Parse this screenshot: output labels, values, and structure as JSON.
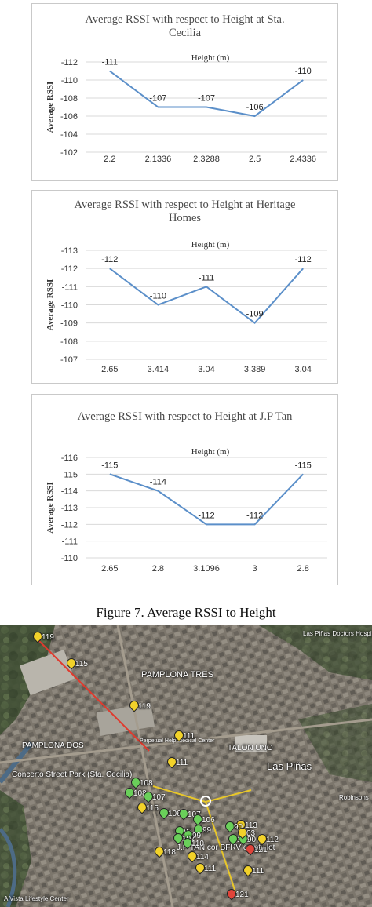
{
  "chart_data": [
    {
      "type": "line",
      "title": "Average RSSI with respect to Height at Sta. Cecilia",
      "title_lines": [
        "Average RSSI with respect to Height at Sta.",
        "Cecilia"
      ],
      "xlabel": "Height (m)",
      "ylabel": "Average RSSI",
      "categories": [
        "2.2",
        "2.1336",
        "2.3288",
        "2.5",
        "2.4336"
      ],
      "values": [
        -111,
        -107,
        -107,
        -106,
        -110
      ],
      "yticks": [
        "-112",
        "-110",
        "-108",
        "-106",
        "-104",
        "-102"
      ],
      "ylim": [
        -112,
        -102
      ],
      "y_reversed": true,
      "grid": true,
      "line_color": "#5b8fc9"
    },
    {
      "type": "line",
      "title": "Average RSSI with respect to Height at Heritage Homes",
      "title_lines": [
        "Average RSSI with respect to Height at Heritage",
        "Homes"
      ],
      "xlabel": "Height (m)",
      "ylabel": "Average RSSI",
      "categories": [
        "2.65",
        "3.414",
        "3.04",
        "3.389",
        "3.04"
      ],
      "values": [
        -112,
        -110,
        -111,
        -109,
        -112
      ],
      "yticks": [
        "-113",
        "-112",
        "-111",
        "-110",
        "-109",
        "-108",
        "-107"
      ],
      "ylim": [
        -113,
        -107
      ],
      "y_reversed": true,
      "grid": true,
      "line_color": "#5b8fc9"
    },
    {
      "type": "line",
      "title": "Average RSSI with respect to Height at J.P Tan",
      "title_lines": [
        "Average RSSI with respect to Height at J.P Tan"
      ],
      "xlabel": "Height (m)",
      "ylabel": "Average RSSI",
      "categories": [
        "2.65",
        "2.8",
        "3.1096",
        "3",
        "2.8"
      ],
      "values": [
        -115,
        -114,
        -112,
        -112,
        -115
      ],
      "yticks": [
        "-116",
        "-115",
        "-114",
        "-113",
        "-112",
        "-111",
        "-110"
      ],
      "ylim": [
        -116,
        -110
      ],
      "y_reversed": true,
      "grid": true,
      "line_color": "#5b8fc9"
    }
  ],
  "caption": "Figure 7. Average RSSI to Height",
  "map": {
    "place_labels": [
      "PAMPLONA TRES",
      "PAMPLONA DOS",
      "TALON UNO",
      "Las Piñas",
      "Concerto Street Park (Sta. Cecilia)",
      "J.P TAN cor BFRV empty lot",
      "Perpetual Help Medical Center",
      "Robinsons",
      "Las Piñas Doctors Hospital",
      "A Vista Lifestyle Center"
    ],
    "pins": [
      {
        "label": "119",
        "color": "yellow"
      },
      {
        "label": "115",
        "color": "yellow"
      },
      {
        "label": "119",
        "color": "yellow"
      },
      {
        "label": "111",
        "color": "yellow"
      },
      {
        "label": "111",
        "color": "yellow"
      },
      {
        "label": "108",
        "color": "green"
      },
      {
        "label": "108",
        "color": "green"
      },
      {
        "label": "107",
        "color": "green"
      },
      {
        "label": "106",
        "color": "green"
      },
      {
        "label": "115",
        "color": "yellow"
      },
      {
        "label": "107",
        "color": "green"
      },
      {
        "label": "106",
        "color": "green"
      },
      {
        "label": "99",
        "color": "green"
      },
      {
        "label": "87",
        "color": "green"
      },
      {
        "label": "99",
        "color": "green"
      },
      {
        "label": "107",
        "color": "green"
      },
      {
        "label": "110",
        "color": "green"
      },
      {
        "label": "118",
        "color": "yellow"
      },
      {
        "label": "114",
        "color": "yellow"
      },
      {
        "label": "113",
        "color": "yellow"
      },
      {
        "label": "90",
        "color": "green"
      },
      {
        "label": "115",
        "color": "green"
      },
      {
        "label": "90",
        "color": "green"
      },
      {
        "label": "03",
        "color": "yellow"
      },
      {
        "label": "112",
        "color": "yellow"
      },
      {
        "label": "121",
        "color": "red"
      },
      {
        "label": "111",
        "color": "yellow"
      },
      {
        "label": "111",
        "color": "yellow"
      },
      {
        "label": "121",
        "color": "red"
      }
    ]
  }
}
